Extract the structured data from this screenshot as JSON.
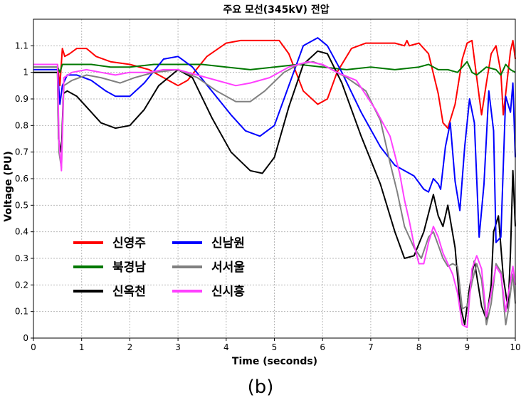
{
  "chart_data": {
    "type": "line",
    "title": "주요 모선(345kV) 전압",
    "xlabel": "Time (seconds)",
    "ylabel": "Voltage (PU)",
    "caption": "(b)",
    "xlim": [
      0,
      10
    ],
    "ylim": [
      0,
      1.2
    ],
    "x_ticks": [
      "0",
      "1",
      "2",
      "3",
      "4",
      "5",
      "6",
      "7",
      "8",
      "9",
      "10"
    ],
    "y_ticks": [
      "0",
      "0.1",
      "0.2",
      "0.3",
      "0.4",
      "0.5",
      "0.6",
      "0.7",
      "0.8",
      "0.9",
      "1",
      "1.1"
    ],
    "grid": true,
    "legend_position": "lower-left",
    "series": [
      {
        "name": "신영주",
        "color": "#ff0000",
        "points": [
          [
            0,
            1.03
          ],
          [
            0.5,
            1.03
          ],
          [
            0.55,
            0.95
          ],
          [
            0.6,
            1.09
          ],
          [
            0.65,
            1.06
          ],
          [
            0.75,
            1.07
          ],
          [
            0.9,
            1.09
          ],
          [
            1.1,
            1.09
          ],
          [
            1.3,
            1.06
          ],
          [
            1.6,
            1.04
          ],
          [
            2.0,
            1.03
          ],
          [
            2.4,
            1.01
          ],
          [
            2.8,
            0.97
          ],
          [
            3.0,
            0.95
          ],
          [
            3.2,
            0.97
          ],
          [
            3.6,
            1.06
          ],
          [
            4.0,
            1.11
          ],
          [
            4.3,
            1.12
          ],
          [
            4.8,
            1.12
          ],
          [
            5.1,
            1.12
          ],
          [
            5.3,
            1.07
          ],
          [
            5.6,
            0.93
          ],
          [
            5.9,
            0.88
          ],
          [
            6.1,
            0.9
          ],
          [
            6.3,
            1.0
          ],
          [
            6.6,
            1.09
          ],
          [
            6.9,
            1.11
          ],
          [
            7.2,
            1.11
          ],
          [
            7.5,
            1.11
          ],
          [
            7.7,
            1.1
          ],
          [
            7.75,
            1.12
          ],
          [
            7.8,
            1.1
          ],
          [
            8.0,
            1.11
          ],
          [
            8.2,
            1.07
          ],
          [
            8.4,
            0.92
          ],
          [
            8.5,
            0.81
          ],
          [
            8.6,
            0.79
          ],
          [
            8.75,
            0.88
          ],
          [
            8.9,
            1.05
          ],
          [
            9.0,
            1.11
          ],
          [
            9.1,
            1.12
          ],
          [
            9.2,
            0.98
          ],
          [
            9.3,
            0.84
          ],
          [
            9.4,
            0.96
          ],
          [
            9.5,
            1.07
          ],
          [
            9.6,
            1.1
          ],
          [
            9.7,
            1.0
          ],
          [
            9.75,
            0.84
          ],
          [
            9.8,
            0.92
          ],
          [
            9.9,
            1.08
          ],
          [
            9.95,
            1.12
          ],
          [
            10.0,
            1.05
          ]
        ]
      },
      {
        "name": "북경남",
        "color": "#007800",
        "points": [
          [
            0,
            1.02
          ],
          [
            0.5,
            1.02
          ],
          [
            0.55,
            1.0
          ],
          [
            0.6,
            1.03
          ],
          [
            0.8,
            1.03
          ],
          [
            1.2,
            1.03
          ],
          [
            1.6,
            1.02
          ],
          [
            2.0,
            1.02
          ],
          [
            2.5,
            1.03
          ],
          [
            3.0,
            1.03
          ],
          [
            3.5,
            1.03
          ],
          [
            4.0,
            1.02
          ],
          [
            4.5,
            1.01
          ],
          [
            5.0,
            1.02
          ],
          [
            5.5,
            1.03
          ],
          [
            6.0,
            1.02
          ],
          [
            6.5,
            1.01
          ],
          [
            7.0,
            1.02
          ],
          [
            7.5,
            1.01
          ],
          [
            8.0,
            1.02
          ],
          [
            8.2,
            1.03
          ],
          [
            8.4,
            1.01
          ],
          [
            8.6,
            1.01
          ],
          [
            8.8,
            1.0
          ],
          [
            9.0,
            1.04
          ],
          [
            9.1,
            1.0
          ],
          [
            9.2,
            0.99
          ],
          [
            9.4,
            1.02
          ],
          [
            9.6,
            1.01
          ],
          [
            9.7,
            0.99
          ],
          [
            9.8,
            1.03
          ],
          [
            9.9,
            1.01
          ],
          [
            10.0,
            1.0
          ]
        ]
      },
      {
        "name": "신옥천",
        "color": "#000000",
        "points": [
          [
            0,
            1.0
          ],
          [
            0.5,
            1.0
          ],
          [
            0.52,
            0.75
          ],
          [
            0.58,
            0.7
          ],
          [
            0.62,
            0.92
          ],
          [
            0.7,
            0.93
          ],
          [
            0.9,
            0.91
          ],
          [
            1.1,
            0.87
          ],
          [
            1.4,
            0.81
          ],
          [
            1.7,
            0.79
          ],
          [
            2.0,
            0.8
          ],
          [
            2.3,
            0.86
          ],
          [
            2.6,
            0.95
          ],
          [
            3.0,
            1.01
          ],
          [
            3.3,
            0.98
          ],
          [
            3.7,
            0.83
          ],
          [
            4.1,
            0.7
          ],
          [
            4.5,
            0.63
          ],
          [
            4.75,
            0.62
          ],
          [
            5.0,
            0.68
          ],
          [
            5.3,
            0.87
          ],
          [
            5.6,
            1.03
          ],
          [
            5.9,
            1.08
          ],
          [
            6.1,
            1.07
          ],
          [
            6.4,
            0.96
          ],
          [
            6.8,
            0.76
          ],
          [
            7.2,
            0.58
          ],
          [
            7.5,
            0.4
          ],
          [
            7.7,
            0.3
          ],
          [
            7.9,
            0.31
          ],
          [
            8.1,
            0.4
          ],
          [
            8.3,
            0.54
          ],
          [
            8.4,
            0.46
          ],
          [
            8.5,
            0.42
          ],
          [
            8.6,
            0.5
          ],
          [
            8.75,
            0.34
          ],
          [
            8.85,
            0.13
          ],
          [
            8.95,
            0.05
          ],
          [
            9.05,
            0.19
          ],
          [
            9.15,
            0.29
          ],
          [
            9.3,
            0.12
          ],
          [
            9.4,
            0.07
          ],
          [
            9.5,
            0.2
          ],
          [
            9.55,
            0.4
          ],
          [
            9.65,
            0.46
          ],
          [
            9.75,
            0.23
          ],
          [
            9.85,
            0.11
          ],
          [
            9.9,
            0.32
          ],
          [
            9.95,
            0.63
          ],
          [
            10.0,
            0.42
          ]
        ]
      },
      {
        "name": "신남원",
        "color": "#0000ff",
        "points": [
          [
            0,
            1.01
          ],
          [
            0.5,
            1.01
          ],
          [
            0.55,
            0.88
          ],
          [
            0.6,
            0.95
          ],
          [
            0.7,
            0.99
          ],
          [
            0.9,
            0.99
          ],
          [
            1.2,
            0.97
          ],
          [
            1.5,
            0.93
          ],
          [
            1.7,
            0.91
          ],
          [
            2.0,
            0.91
          ],
          [
            2.3,
            0.96
          ],
          [
            2.7,
            1.05
          ],
          [
            3.0,
            1.06
          ],
          [
            3.3,
            1.02
          ],
          [
            3.7,
            0.93
          ],
          [
            4.1,
            0.84
          ],
          [
            4.4,
            0.78
          ],
          [
            4.7,
            0.76
          ],
          [
            5.0,
            0.8
          ],
          [
            5.3,
            0.95
          ],
          [
            5.6,
            1.1
          ],
          [
            5.9,
            1.13
          ],
          [
            6.1,
            1.1
          ],
          [
            6.4,
            1.0
          ],
          [
            6.8,
            0.85
          ],
          [
            7.2,
            0.72
          ],
          [
            7.5,
            0.65
          ],
          [
            7.7,
            0.63
          ],
          [
            7.9,
            0.61
          ],
          [
            8.1,
            0.56
          ],
          [
            8.2,
            0.55
          ],
          [
            8.3,
            0.6
          ],
          [
            8.4,
            0.58
          ],
          [
            8.45,
            0.56
          ],
          [
            8.55,
            0.72
          ],
          [
            8.65,
            0.81
          ],
          [
            8.75,
            0.59
          ],
          [
            8.85,
            0.48
          ],
          [
            8.95,
            0.72
          ],
          [
            9.05,
            0.9
          ],
          [
            9.15,
            0.81
          ],
          [
            9.25,
            0.38
          ],
          [
            9.35,
            0.58
          ],
          [
            9.45,
            0.93
          ],
          [
            9.55,
            0.78
          ],
          [
            9.6,
            0.36
          ],
          [
            9.7,
            0.38
          ],
          [
            9.8,
            0.91
          ],
          [
            9.9,
            0.85
          ],
          [
            9.95,
            0.96
          ],
          [
            10.0,
            0.68
          ]
        ]
      },
      {
        "name": "서서울",
        "color": "#808080",
        "points": [
          [
            0,
            1.02
          ],
          [
            0.5,
            1.02
          ],
          [
            0.53,
            0.7
          ],
          [
            0.58,
            0.64
          ],
          [
            0.63,
            0.95
          ],
          [
            0.8,
            0.97
          ],
          [
            1.1,
            0.99
          ],
          [
            1.4,
            0.98
          ],
          [
            1.8,
            0.96
          ],
          [
            2.1,
            0.98
          ],
          [
            2.5,
            1.0
          ],
          [
            3.0,
            1.01
          ],
          [
            3.4,
            0.98
          ],
          [
            3.8,
            0.93
          ],
          [
            4.2,
            0.89
          ],
          [
            4.5,
            0.89
          ],
          [
            4.8,
            0.93
          ],
          [
            5.2,
            1.0
          ],
          [
            5.5,
            1.03
          ],
          [
            5.8,
            1.04
          ],
          [
            6.1,
            1.02
          ],
          [
            6.5,
            0.98
          ],
          [
            6.9,
            0.93
          ],
          [
            7.2,
            0.82
          ],
          [
            7.4,
            0.66
          ],
          [
            7.55,
            0.55
          ],
          [
            7.7,
            0.42
          ],
          [
            7.9,
            0.34
          ],
          [
            8.05,
            0.3
          ],
          [
            8.2,
            0.38
          ],
          [
            8.3,
            0.4
          ],
          [
            8.4,
            0.35
          ],
          [
            8.5,
            0.3
          ],
          [
            8.6,
            0.27
          ],
          [
            8.7,
            0.28
          ],
          [
            8.8,
            0.27
          ],
          [
            8.9,
            0.11
          ],
          [
            9.0,
            0.12
          ],
          [
            9.1,
            0.21
          ],
          [
            9.2,
            0.28
          ],
          [
            9.3,
            0.22
          ],
          [
            9.4,
            0.05
          ],
          [
            9.5,
            0.13
          ],
          [
            9.6,
            0.28
          ],
          [
            9.7,
            0.25
          ],
          [
            9.8,
            0.05
          ],
          [
            9.85,
            0.1
          ],
          [
            9.95,
            0.24
          ],
          [
            10.0,
            0.13
          ]
        ]
      },
      {
        "name": "신시흥",
        "color": "#ff40ff",
        "points": [
          [
            0,
            1.03
          ],
          [
            0.5,
            1.03
          ],
          [
            0.53,
            0.74
          ],
          [
            0.58,
            0.63
          ],
          [
            0.63,
            0.98
          ],
          [
            0.8,
            1.0
          ],
          [
            1.1,
            1.01
          ],
          [
            1.4,
            1.0
          ],
          [
            1.7,
            0.99
          ],
          [
            2.0,
            1.0
          ],
          [
            2.4,
            1.0
          ],
          [
            2.7,
            1.01
          ],
          [
            3.0,
            1.01
          ],
          [
            3.4,
            0.99
          ],
          [
            3.8,
            0.97
          ],
          [
            4.2,
            0.95
          ],
          [
            4.5,
            0.96
          ],
          [
            4.9,
            0.98
          ],
          [
            5.3,
            1.02
          ],
          [
            5.7,
            1.04
          ],
          [
            6.0,
            1.03
          ],
          [
            6.3,
            1.0
          ],
          [
            6.7,
            0.97
          ],
          [
            7.1,
            0.86
          ],
          [
            7.4,
            0.76
          ],
          [
            7.6,
            0.62
          ],
          [
            7.7,
            0.52
          ],
          [
            7.8,
            0.44
          ],
          [
            7.9,
            0.35
          ],
          [
            8.0,
            0.28
          ],
          [
            8.1,
            0.28
          ],
          [
            8.2,
            0.36
          ],
          [
            8.3,
            0.42
          ],
          [
            8.4,
            0.38
          ],
          [
            8.5,
            0.32
          ],
          [
            8.6,
            0.28
          ],
          [
            8.7,
            0.24
          ],
          [
            8.8,
            0.17
          ],
          [
            8.9,
            0.05
          ],
          [
            9.0,
            0.04
          ],
          [
            9.1,
            0.26
          ],
          [
            9.2,
            0.31
          ],
          [
            9.3,
            0.26
          ],
          [
            9.4,
            0.08
          ],
          [
            9.5,
            0.17
          ],
          [
            9.6,
            0.27
          ],
          [
            9.7,
            0.24
          ],
          [
            9.8,
            0.1
          ],
          [
            9.85,
            0.16
          ],
          [
            9.95,
            0.27
          ],
          [
            10.0,
            0.2
          ]
        ]
      }
    ]
  }
}
